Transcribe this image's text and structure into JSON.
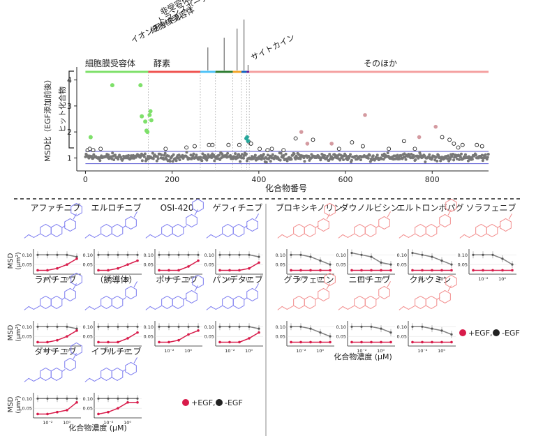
{
  "top_chart": {
    "ylabel": "MSD比（EGF添加前後）",
    "xlabel": "化合物番号",
    "bracket_label": "ヒット化合物",
    "x_ticks": [
      "0",
      "200",
      "400",
      "600",
      "800"
    ],
    "y_ticks": [
      "1",
      "2",
      "3",
      "4"
    ],
    "xlim": [
      -20,
      930
    ],
    "ylim": [
      0.5,
      4.5
    ],
    "hit_threshold": 1.25,
    "lower_band": 0.78,
    "categories": [
      {
        "label": "細胞膜受容体",
        "start": 0,
        "end": 145,
        "color": "#7ee06a"
      },
      {
        "label": "酵素",
        "start": 145,
        "end": 265,
        "color": "#ef5350"
      },
      {
        "label": "イオンチャネル",
        "start": 265,
        "end": 300,
        "color": "#4fc3f7"
      },
      {
        "label": "細胞核受容体",
        "start": 300,
        "end": 340,
        "color": "#2e7d32"
      },
      {
        "label": "トランスポーター",
        "start": 340,
        "end": 360,
        "color": "#f4a62a"
      },
      {
        "label": "非受容体型キナーゼ",
        "start": 360,
        "end": 372,
        "color": "#1565c0"
      },
      {
        "label": "サイトカイン",
        "start": 372,
        "end": 378,
        "color": "#6a1b9a"
      },
      {
        "label": "そのほか",
        "start": 378,
        "end": 930,
        "color": "#f4a0a0"
      }
    ],
    "hits_green": [
      [
        12,
        1.8
      ],
      [
        62,
        3.8
      ],
      [
        127,
        3.8
      ],
      [
        130,
        2.6
      ],
      [
        138,
        2.4
      ],
      [
        141,
        2.05
      ],
      [
        143,
        2.0
      ],
      [
        148,
        2.65
      ],
      [
        150,
        2.8
      ],
      [
        152,
        2.45
      ]
    ],
    "hits_teal": [
      [
        371,
        1.75
      ],
      [
        373,
        1.8
      ],
      [
        375,
        1.65
      ]
    ],
    "hits_pink": [
      [
        498,
        2.0
      ],
      [
        512,
        1.55
      ],
      [
        568,
        1.55
      ],
      [
        645,
        2.65
      ],
      [
        770,
        1.8
      ],
      [
        808,
        2.2
      ]
    ],
    "open_points": [
      [
        5,
        1.3
      ],
      [
        10,
        1.35
      ],
      [
        18,
        1.3
      ],
      [
        35,
        1.35
      ],
      [
        185,
        1.35
      ],
      [
        233,
        1.4
      ],
      [
        252,
        1.45
      ],
      [
        285,
        1.5
      ],
      [
        293,
        1.5
      ],
      [
        330,
        1.5
      ],
      [
        355,
        1.5
      ],
      [
        378,
        1.6
      ],
      [
        382,
        1.55
      ],
      [
        402,
        1.35
      ],
      [
        420,
        1.3
      ],
      [
        430,
        1.35
      ],
      [
        457,
        1.3
      ],
      [
        485,
        1.75
      ],
      [
        525,
        1.7
      ],
      [
        585,
        1.35
      ],
      [
        615,
        1.6
      ],
      [
        640,
        1.45
      ],
      [
        700,
        1.35
      ],
      [
        735,
        1.65
      ],
      [
        760,
        1.35
      ],
      [
        823,
        1.8
      ],
      [
        840,
        1.7
      ],
      [
        850,
        1.55
      ],
      [
        860,
        1.4
      ],
      [
        870,
        1.5
      ],
      [
        903,
        1.5
      ],
      [
        915,
        1.45
      ]
    ]
  },
  "left_panel": {
    "compounds": [
      {
        "name": "アファチニブ",
        "series": {
          "egf": [
            0.02,
            0.02,
            0.03,
            0.05,
            0.08
          ],
          "ctrl": [
            0.1,
            0.1,
            0.1,
            0.1,
            0.09
          ]
        }
      },
      {
        "name": "エルロチニブ",
        "series": {
          "egf": [
            0.02,
            0.02,
            0.03,
            0.05,
            0.07
          ],
          "ctrl": [
            0.1,
            0.1,
            0.1,
            0.1,
            0.1
          ]
        }
      },
      {
        "name": "OSI-420",
        "series": {
          "egf": [
            0.02,
            0.02,
            0.02,
            0.04,
            0.07
          ],
          "ctrl": [
            0.1,
            0.1,
            0.1,
            0.1,
            0.1
          ]
        }
      },
      {
        "name": "ゲフィチニブ",
        "series": {
          "egf": [
            0.02,
            0.02,
            0.02,
            0.03,
            0.06
          ],
          "ctrl": [
            0.1,
            0.1,
            0.1,
            0.1,
            0.09
          ]
        }
      },
      {
        "name": "ラパチニブ",
        "series": {
          "egf": [
            0.02,
            0.02,
            0.03,
            0.05,
            0.08
          ],
          "ctrl": [
            0.1,
            0.1,
            0.1,
            0.1,
            0.09
          ]
        }
      },
      {
        "name": "（誘導体）",
        "series": {
          "egf": [
            0.02,
            0.02,
            0.02,
            0.04,
            0.07
          ],
          "ctrl": [
            0.1,
            0.1,
            0.1,
            0.1,
            0.1
          ]
        }
      },
      {
        "name": "ポナチニブ",
        "series": {
          "egf": [
            0.02,
            0.02,
            0.03,
            0.06,
            0.08
          ],
          "ctrl": [
            0.1,
            0.1,
            0.1,
            0.1,
            0.1
          ]
        }
      },
      {
        "name": "パンデタニブ",
        "series": {
          "egf": [
            0.02,
            0.02,
            0.02,
            0.04,
            0.07
          ],
          "ctrl": [
            0.1,
            0.1,
            0.1,
            0.1,
            0.09
          ]
        }
      },
      {
        "name": "ダサチニブ",
        "series": {
          "egf": [
            0.02,
            0.02,
            0.03,
            0.04,
            0.08
          ],
          "ctrl": [
            0.1,
            0.1,
            0.1,
            0.1,
            0.1
          ]
        }
      },
      {
        "name": "イブルチニブ",
        "series": {
          "egf": [
            0.02,
            0.03,
            0.05,
            0.08,
            0.08
          ],
          "ctrl": [
            0.1,
            0.1,
            0.1,
            0.1,
            0.1
          ]
        }
      }
    ],
    "ylabel": "MSD",
    "yunit": "(μm²)",
    "xlabel": "化合物濃度 (μM)"
  },
  "right_panel": {
    "compounds": [
      {
        "name": "ブロキシキノリン",
        "series": {
          "egf": [
            0.02,
            0.02,
            0.02,
            0.02,
            0.02
          ],
          "ctrl": [
            0.1,
            0.1,
            0.09,
            0.07,
            0.05
          ]
        }
      },
      {
        "name": "ダウノルビシン",
        "series": {
          "egf": [
            0.02,
            0.02,
            0.02,
            0.02,
            0.02
          ],
          "ctrl": [
            0.11,
            0.1,
            0.09,
            0.06,
            0.05
          ]
        }
      },
      {
        "name": "エルトロンボパグ",
        "series": {
          "egf": [
            0.02,
            0.02,
            0.02,
            0.02,
            0.02
          ],
          "ctrl": [
            0.11,
            0.1,
            0.09,
            0.07,
            0.05
          ]
        }
      },
      {
        "name": "ソラフェニブ",
        "series": {
          "egf": [
            0.02,
            0.02,
            0.02,
            0.02,
            0.02
          ],
          "ctrl": [
            0.1,
            0.1,
            0.1,
            0.08,
            0.05
          ]
        }
      },
      {
        "name": "グラフェニン",
        "series": {
          "egf": [
            0.02,
            0.02,
            0.02,
            0.02,
            0.02
          ],
          "ctrl": [
            0.1,
            0.1,
            0.09,
            0.07,
            0.05
          ]
        }
      },
      {
        "name": "ニロチニブ",
        "series": {
          "egf": [
            0.02,
            0.02,
            0.02,
            0.02,
            0.02
          ],
          "ctrl": [
            0.1,
            0.1,
            0.1,
            0.09,
            0.07
          ]
        }
      },
      {
        "name": "クルクミン",
        "series": {
          "egf": [
            0.02,
            0.02,
            0.02,
            0.02,
            0.02
          ],
          "ctrl": [
            0.1,
            0.1,
            0.09,
            0.08,
            0.06
          ]
        }
      }
    ],
    "ylabel": "MSD",
    "yunit": "(μm²)",
    "xlabel": "化合物濃度 (μM)"
  },
  "mini_axis": {
    "yticks": [
      "0.10",
      "0.05"
    ],
    "xticks": [
      "10⁻²",
      "10⁰"
    ]
  },
  "legend": {
    "egf_label": "+EGF,",
    "ctrl_label": "-EGF"
  },
  "colors": {
    "egf": "#d81b4a",
    "ctrl": "#808080",
    "green": "#7ee06a",
    "teal": "#26a69a",
    "pink": "#d49aa0",
    "structure_blue": "#7c7cf0",
    "structure_red": "#f28c8c",
    "band": "#6b6bd6",
    "scatter_gray": "#777777"
  }
}
